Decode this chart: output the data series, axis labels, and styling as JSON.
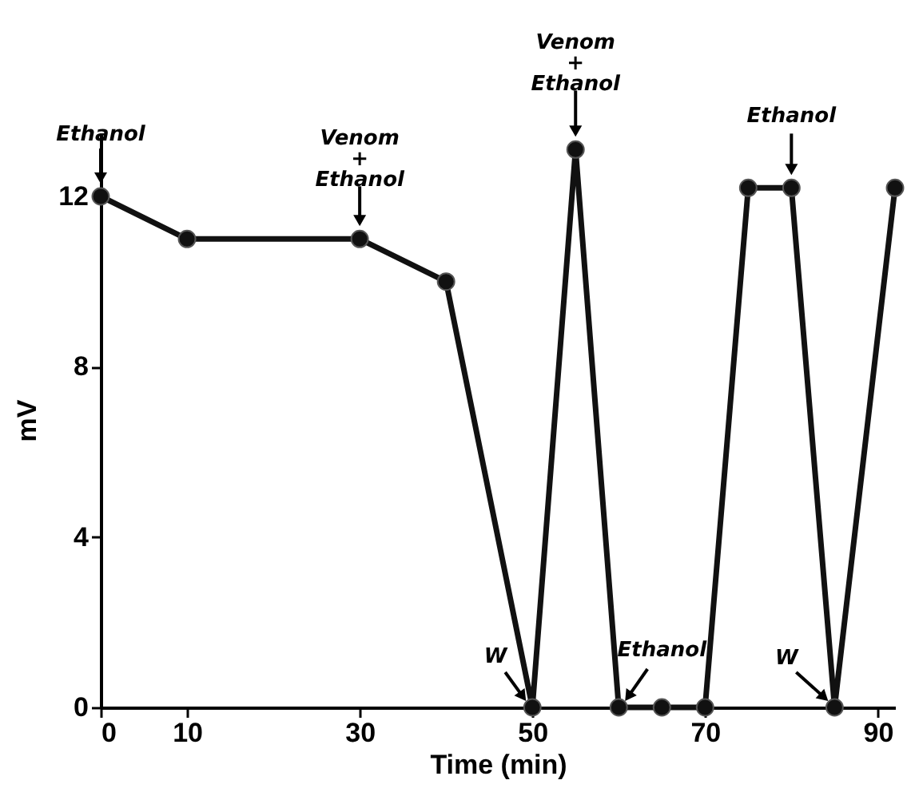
{
  "chart_data": {
    "type": "line",
    "xlabel": "Time (min)",
    "ylabel": "mV",
    "x": [
      0,
      10,
      30,
      40,
      50,
      55,
      60,
      65,
      70,
      75,
      80,
      85,
      92
    ],
    "series": [
      {
        "color": "#111111",
        "values": [
          12,
          11,
          11,
          10,
          0,
          13.1,
          0,
          0,
          0,
          12.2,
          12.2,
          0,
          12.2
        ]
      }
    ],
    "xlim": [
      0,
      92
    ],
    "ylim": [
      0,
      13.5
    ],
    "xticks": [
      0,
      10,
      30,
      50,
      70,
      90
    ],
    "yticks": [
      0,
      4,
      8,
      12
    ],
    "grid": false,
    "marker": "circle",
    "line_style": "solid",
    "annotations": [
      {
        "text": "Ethanol",
        "x": 0,
        "y": 12
      },
      {
        "text": "Venom + Ethanol",
        "x": 30,
        "y": 11
      },
      {
        "text": "W",
        "x": 50,
        "y": 0
      },
      {
        "text": "Venom + Ethanol",
        "x": 55,
        "y": 13.1
      },
      {
        "text": "Ethanol",
        "x": 60,
        "y": 0
      },
      {
        "text": "Ethanol",
        "x": 80,
        "y": 12.2
      },
      {
        "text": "W",
        "x": 85,
        "y": 0
      }
    ]
  }
}
